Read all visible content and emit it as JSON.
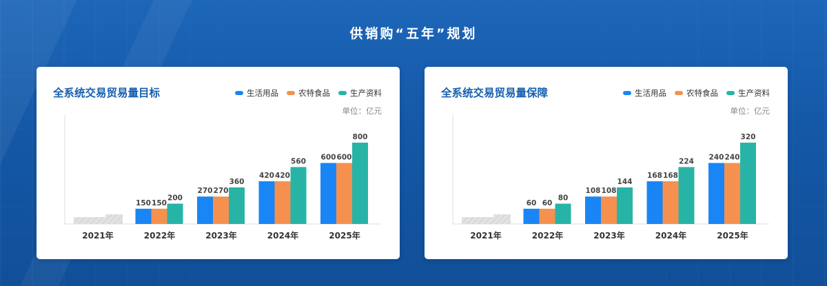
{
  "page": {
    "title": "供销购“五年”规划"
  },
  "colors": {
    "series1": "#1a85f5",
    "series2": "#f6904f",
    "series3": "#27b4a7",
    "baseline": "#d6d6d6"
  },
  "chart_data": [
    {
      "type": "bar",
      "title": "全系统交易贸易量目标",
      "unit": "单位：亿元",
      "categories": [
        "2021年",
        "2022年",
        "2023年",
        "2024年",
        "2025年"
      ],
      "series": [
        {
          "name": "生活用品",
          "values": [
            null,
            150,
            270,
            420,
            600
          ]
        },
        {
          "name": "农特食品",
          "values": [
            null,
            150,
            270,
            420,
            600
          ]
        },
        {
          "name": "生产资料",
          "values": [
            null,
            200,
            360,
            560,
            800
          ]
        }
      ],
      "ylim": [
        0,
        800
      ],
      "grid": false,
      "legend": "top-right"
    },
    {
      "type": "bar",
      "title": "全系统交易贸易量保障",
      "unit": "单位：亿元",
      "categories": [
        "2021年",
        "2022年",
        "2023年",
        "2024年",
        "2025年"
      ],
      "series": [
        {
          "name": "生活用品",
          "values": [
            null,
            60,
            108,
            168,
            240
          ]
        },
        {
          "name": "农特食品",
          "values": [
            null,
            60,
            108,
            168,
            240
          ]
        },
        {
          "name": "生产资料",
          "values": [
            null,
            80,
            144,
            224,
            320
          ]
        }
      ],
      "ylim": [
        0,
        320
      ],
      "grid": false,
      "legend": "top-right"
    }
  ]
}
